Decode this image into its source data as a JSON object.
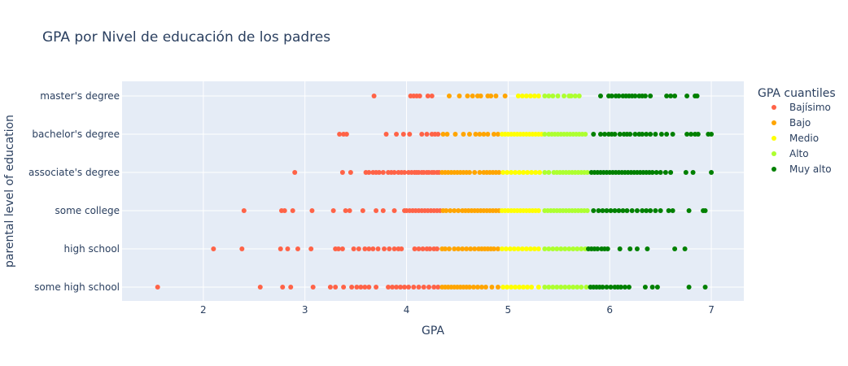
{
  "chart_data": {
    "type": "scatter",
    "title": "GPA por Nivel de educación de los padres",
    "xlabel": "GPA",
    "ylabel": "parental level of education",
    "xlim": [
      1.2,
      7.32
    ],
    "xticks": [
      "2",
      "3",
      "4",
      "5",
      "6",
      "7"
    ],
    "categories": [
      "some high school",
      "high school",
      "some college",
      "associate's degree",
      "bachelor's degree",
      "master's degree"
    ],
    "grid": true,
    "background": "#e5ecf6",
    "legend_title": "GPA cuantiles",
    "legend_position": "right",
    "series": [
      {
        "name": "Bajísimo",
        "color": "#ff6347",
        "points": [
          {
            "category": "master's degree",
            "x": [
              3.68,
              4.04,
              4.07,
              4.1,
              4.13,
              4.21,
              4.25
            ]
          },
          {
            "category": "bachelor's degree",
            "x": [
              3.34,
              3.38,
              3.41,
              3.8,
              3.9,
              3.97,
              4.03,
              4.15,
              4.2,
              4.25,
              4.28,
              4.31
            ]
          },
          {
            "category": "associate's degree",
            "x": [
              2.9,
              3.37,
              3.45,
              3.6,
              3.63,
              3.67,
              3.7,
              3.73,
              3.77,
              3.82,
              3.85,
              3.88,
              3.92,
              3.95,
              3.98,
              4.02,
              4.05,
              4.08,
              4.1,
              4.12,
              4.15,
              4.17,
              4.2,
              4.22,
              4.25,
              4.27,
              4.3,
              4.32
            ]
          },
          {
            "category": "some college",
            "x": [
              2.4,
              2.77,
              2.8,
              2.88,
              3.07,
              3.28,
              3.4,
              3.44,
              3.57,
              3.7,
              3.77,
              3.88,
              3.98,
              4.0,
              4.03,
              4.06,
              4.09,
              4.12,
              4.15,
              4.18,
              4.21,
              4.24,
              4.27,
              4.3,
              4.33
            ]
          },
          {
            "category": "high school",
            "x": [
              2.1,
              2.38,
              2.76,
              2.83,
              2.93,
              3.06,
              3.3,
              3.33,
              3.37,
              3.48,
              3.53,
              3.59,
              3.63,
              3.67,
              3.72,
              3.78,
              3.83,
              3.88,
              3.92,
              3.95,
              4.08,
              4.12,
              4.16,
              4.2,
              4.23,
              4.27,
              4.3
            ]
          },
          {
            "category": "some high school",
            "x": [
              1.55,
              2.56,
              2.78,
              2.86,
              3.08,
              3.25,
              3.3,
              3.38,
              3.46,
              3.51,
              3.55,
              3.59,
              3.63,
              3.7,
              3.82,
              3.86,
              3.9,
              3.94,
              3.98,
              4.02,
              4.07,
              4.12,
              4.17,
              4.22,
              4.27,
              4.31
            ]
          }
        ]
      },
      {
        "name": "Bajo",
        "color": "#ffa500",
        "points": [
          {
            "category": "master's degree",
            "x": [
              4.42,
              4.52,
              4.6,
              4.65,
              4.7,
              4.73,
              4.8,
              4.83,
              4.88,
              4.97
            ]
          },
          {
            "category": "bachelor's degree",
            "x": [
              4.36,
              4.4,
              4.48,
              4.56,
              4.62,
              4.68,
              4.72,
              4.76,
              4.8,
              4.86,
              4.9
            ]
          },
          {
            "category": "associate's degree",
            "x": [
              4.35,
              4.38,
              4.41,
              4.44,
              4.47,
              4.5,
              4.53,
              4.56,
              4.59,
              4.62,
              4.67,
              4.72,
              4.76,
              4.79,
              4.82,
              4.85,
              4.88,
              4.91
            ]
          },
          {
            "category": "some college",
            "x": [
              4.36,
              4.39,
              4.43,
              4.47,
              4.51,
              4.55,
              4.58,
              4.61,
              4.64,
              4.67,
              4.7,
              4.73,
              4.76,
              4.79,
              4.82,
              4.85,
              4.88,
              4.91
            ]
          },
          {
            "category": "high school",
            "x": [
              4.35,
              4.38,
              4.42,
              4.47,
              4.51,
              4.55,
              4.59,
              4.63,
              4.67,
              4.71,
              4.74,
              4.77,
              4.8,
              4.83,
              4.86,
              4.9
            ]
          },
          {
            "category": "some high school",
            "x": [
              4.35,
              4.38,
              4.41,
              4.44,
              4.47,
              4.5,
              4.53,
              4.56,
              4.59,
              4.62,
              4.66,
              4.7,
              4.74,
              4.78,
              4.84,
              4.9
            ]
          }
        ]
      },
      {
        "name": "Medio",
        "color": "#ffff00",
        "points": [
          {
            "category": "master's degree",
            "x": [
              5.1,
              5.14,
              5.18,
              5.22,
              5.26,
              5.3
            ]
          },
          {
            "category": "bachelor's degree",
            "x": [
              4.94,
              4.97,
              5.0,
              5.03,
              5.06,
              5.09,
              5.12,
              5.15,
              5.18,
              5.21,
              5.24,
              5.27,
              5.3,
              5.33
            ]
          },
          {
            "category": "associate's degree",
            "x": [
              4.95,
              4.99,
              5.03,
              5.07,
              5.11,
              5.15,
              5.19,
              5.23,
              5.27,
              5.31
            ]
          },
          {
            "category": "some college",
            "x": [
              4.94,
              4.97,
              5.0,
              5.03,
              5.06,
              5.09,
              5.12,
              5.15,
              5.18,
              5.21,
              5.24,
              5.27,
              5.3
            ]
          },
          {
            "category": "high school",
            "x": [
              4.94,
              4.98,
              5.02,
              5.06,
              5.1,
              5.14,
              5.18,
              5.22,
              5.26,
              5.3
            ]
          },
          {
            "category": "some high school",
            "x": [
              4.95,
              4.99,
              5.03,
              5.07,
              5.11,
              5.15,
              5.19,
              5.23,
              5.3
            ]
          }
        ]
      },
      {
        "name": "Alto",
        "color": "#adff2f",
        "points": [
          {
            "category": "master's degree",
            "x": [
              5.36,
              5.4,
              5.44,
              5.49,
              5.55,
              5.6,
              5.62,
              5.66,
              5.7
            ]
          },
          {
            "category": "bachelor's degree",
            "x": [
              5.36,
              5.4,
              5.43,
              5.46,
              5.49,
              5.52,
              5.55,
              5.58,
              5.61,
              5.64,
              5.67,
              5.7,
              5.73,
              5.76
            ]
          },
          {
            "category": "associate's degree",
            "x": [
              5.36,
              5.4,
              5.45,
              5.48,
              5.51,
              5.54,
              5.57,
              5.6,
              5.63,
              5.66,
              5.69,
              5.72,
              5.75,
              5.78
            ]
          },
          {
            "category": "some college",
            "x": [
              5.36,
              5.39,
              5.42,
              5.45,
              5.48,
              5.51,
              5.54,
              5.57,
              5.6,
              5.63,
              5.66,
              5.69,
              5.72,
              5.75,
              5.78
            ]
          },
          {
            "category": "high school",
            "x": [
              5.36,
              5.4,
              5.44,
              5.48,
              5.52,
              5.56,
              5.6,
              5.64,
              5.68,
              5.72,
              5.76
            ]
          },
          {
            "category": "some high school",
            "x": [
              5.36,
              5.4,
              5.44,
              5.48,
              5.52,
              5.56,
              5.6,
              5.64,
              5.68,
              5.72,
              5.77
            ]
          }
        ]
      },
      {
        "name": "Muy alto",
        "color": "#008000",
        "points": [
          {
            "category": "master's degree",
            "x": [
              5.91,
              5.99,
              6.02,
              6.06,
              6.09,
              6.13,
              6.16,
              6.19,
              6.22,
              6.25,
              6.29,
              6.32,
              6.35,
              6.4,
              6.56,
              6.6,
              6.64,
              6.76,
              6.84,
              6.86
            ]
          },
          {
            "category": "bachelor's degree",
            "x": [
              5.84,
              5.91,
              5.95,
              5.99,
              6.02,
              6.05,
              6.1,
              6.14,
              6.17,
              6.2,
              6.25,
              6.29,
              6.32,
              6.36,
              6.4,
              6.45,
              6.51,
              6.56,
              6.62,
              6.76,
              6.8,
              6.84,
              6.87,
              6.97,
              7.0
            ]
          },
          {
            "category": "associate's degree",
            "x": [
              5.82,
              5.85,
              5.88,
              5.91,
              5.94,
              5.97,
              6.0,
              6.03,
              6.06,
              6.09,
              6.12,
              6.15,
              6.18,
              6.21,
              6.24,
              6.27,
              6.3,
              6.33,
              6.36,
              6.39,
              6.42,
              6.46,
              6.5,
              6.55,
              6.6,
              6.75,
              6.82,
              7.0
            ]
          },
          {
            "category": "some college",
            "x": [
              5.84,
              5.89,
              5.93,
              5.97,
              6.01,
              6.05,
              6.09,
              6.13,
              6.17,
              6.22,
              6.27,
              6.32,
              6.36,
              6.4,
              6.45,
              6.5,
              6.58,
              6.62,
              6.78,
              6.92,
              6.94
            ]
          },
          {
            "category": "high school",
            "x": [
              5.79,
              5.82,
              5.85,
              5.88,
              5.92,
              5.95,
              5.98,
              6.1,
              6.2,
              6.27,
              6.37,
              6.64,
              6.74
            ]
          },
          {
            "category": "some high school",
            "x": [
              5.81,
              5.84,
              5.87,
              5.9,
              5.93,
              5.97,
              6.01,
              6.05,
              6.08,
              6.11,
              6.15,
              6.19,
              6.35,
              6.42,
              6.47,
              6.78,
              6.94
            ]
          }
        ]
      }
    ]
  }
}
